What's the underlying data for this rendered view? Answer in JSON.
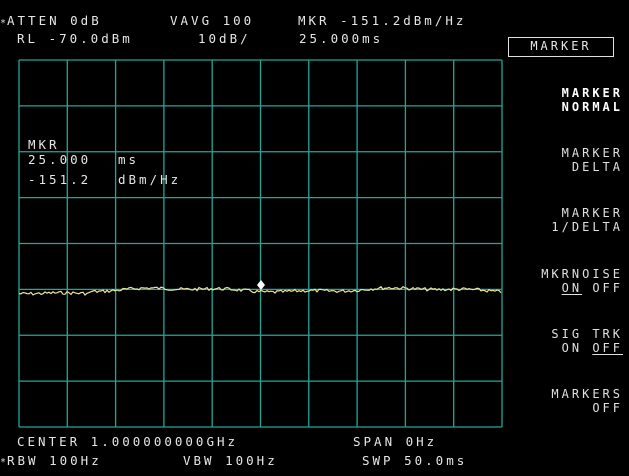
{
  "header": {
    "atten": "ATTEN 0dB",
    "vavg": "VAVG 100",
    "marker_readout": "MKR -151.2dBm/Hz",
    "ref_level": "RL -70.0dBm",
    "scale": "10dB/",
    "marker_time": "25.000ms"
  },
  "marker_box": {
    "label": "MKR",
    "time_value": "25.000",
    "time_unit": "ms",
    "level_value": "-151.2",
    "level_unit": "dBm/Hz"
  },
  "footer": {
    "center": "CENTER 1.000000000GHz",
    "span": "SPAN 0Hz",
    "rbw": "RBW 100Hz",
    "vbw": "VBW 100Hz",
    "sweep": "SWP 50.0ms"
  },
  "menu": {
    "title": "MARKER",
    "keys": [
      {
        "line1": "MARKER",
        "line2": "NORMAL"
      },
      {
        "line1": "MARKER",
        "line2": "DELTA"
      },
      {
        "line1": "MARKER",
        "line2": "1/DELTA"
      },
      {
        "line1": "MKRNOISE",
        "line2_on": "ON",
        "line2_off": "OFF"
      },
      {
        "line1": "SIG TRK",
        "line2_on": "ON",
        "line2_off": "OFF"
      },
      {
        "line1": "MARKERS",
        "line2": "OFF"
      }
    ]
  },
  "colors": {
    "graticule": "#1fa89a",
    "trace": "#e8e6a0",
    "background": "#000000"
  }
}
